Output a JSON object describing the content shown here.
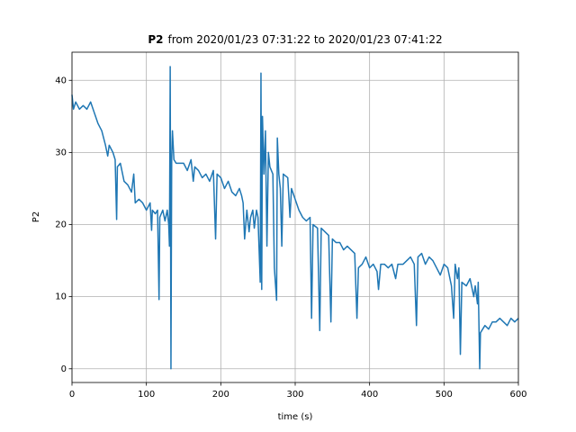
{
  "chart_data": {
    "type": "line",
    "title": [
      "P2",
      "from 2020/01/23 07:31:22 to 2020/01/23 07:41:22"
    ],
    "xlabel": "time (s)",
    "ylabel": "P2",
    "xlim": [
      0,
      600
    ],
    "ylim": [
      -1.9,
      43.9
    ],
    "xticks": [
      0,
      100,
      200,
      300,
      400,
      500,
      600
    ],
    "yticks": [
      0,
      10,
      20,
      30,
      40
    ],
    "grid": true,
    "x": [
      0,
      2,
      5,
      10,
      15,
      20,
      25,
      30,
      35,
      40,
      45,
      48,
      50,
      55,
      58,
      60,
      61,
      65,
      70,
      75,
      80,
      83,
      85,
      90,
      95,
      100,
      105,
      107,
      108,
      112,
      115,
      117,
      118,
      122,
      125,
      128,
      130,
      131,
      132,
      133,
      134,
      135,
      137,
      140,
      150,
      155,
      160,
      163,
      165,
      170,
      175,
      180,
      185,
      190,
      193,
      195,
      200,
      205,
      210,
      215,
      220,
      225,
      228,
      230,
      232,
      235,
      238,
      240,
      243,
      245,
      248,
      250,
      253,
      254,
      255,
      256,
      258,
      260,
      262,
      264,
      266,
      270,
      272,
      275,
      276,
      278,
      280,
      282,
      284,
      290,
      293,
      295,
      300,
      305,
      310,
      315,
      320,
      322,
      324,
      330,
      333,
      335,
      340,
      345,
      348,
      350,
      355,
      360,
      365,
      370,
      375,
      380,
      383,
      385,
      390,
      395,
      400,
      405,
      410,
      412,
      415,
      420,
      425,
      430,
      435,
      438,
      445,
      450,
      455,
      460,
      463,
      465,
      470,
      475,
      480,
      485,
      490,
      495,
      500,
      505,
      510,
      513,
      515,
      518,
      520,
      522,
      524,
      530,
      535,
      540,
      542,
      545,
      546,
      548,
      549,
      552,
      555,
      560,
      565,
      570,
      575,
      580,
      585,
      590,
      595,
      600
    ],
    "series": [
      {
        "name": "P2",
        "color": "#1f77b4",
        "values": [
          38,
          36,
          37,
          36,
          36.5,
          36,
          37,
          35.5,
          34,
          33,
          31,
          29.5,
          31,
          30,
          29,
          20.7,
          28,
          28.5,
          26,
          25.5,
          24.5,
          27,
          23,
          23.5,
          23,
          22,
          23,
          19.2,
          22,
          21.5,
          22,
          9.6,
          21,
          22,
          20.5,
          22,
          20,
          17,
          41.9,
          0,
          29,
          33,
          29,
          28.5,
          28.5,
          27.5,
          29,
          26,
          28,
          27.5,
          26.5,
          27,
          26,
          27.5,
          18,
          27,
          26.5,
          25,
          26,
          24.5,
          24,
          25,
          24,
          23,
          18,
          22,
          19,
          21,
          22,
          19.5,
          22,
          21,
          12,
          41,
          11,
          35,
          27,
          33,
          17,
          30,
          28,
          27,
          14,
          9.5,
          32,
          27,
          25,
          17,
          27,
          26.5,
          21,
          25,
          23.5,
          22,
          21,
          20.5,
          21,
          7,
          20,
          19.5,
          5.3,
          19.5,
          19,
          18.5,
          6.5,
          18,
          17.5,
          17.5,
          16.5,
          17,
          16.5,
          16,
          7,
          14,
          14.5,
          15.5,
          14,
          14.5,
          13.5,
          11,
          14.5,
          14.5,
          14,
          14.5,
          12.5,
          14.5,
          14.5,
          15,
          15.5,
          14.5,
          6,
          15.5,
          16,
          14.5,
          15.5,
          15,
          14,
          13,
          14.5,
          14,
          11.5,
          7,
          14.5,
          12.5,
          14,
          2,
          12,
          11.5,
          12.5,
          10,
          11.5,
          9,
          12,
          0,
          5,
          5.5,
          6,
          5.5,
          6.5,
          6.5,
          7,
          6.5,
          6,
          7,
          6.5,
          7
        ]
      }
    ]
  }
}
